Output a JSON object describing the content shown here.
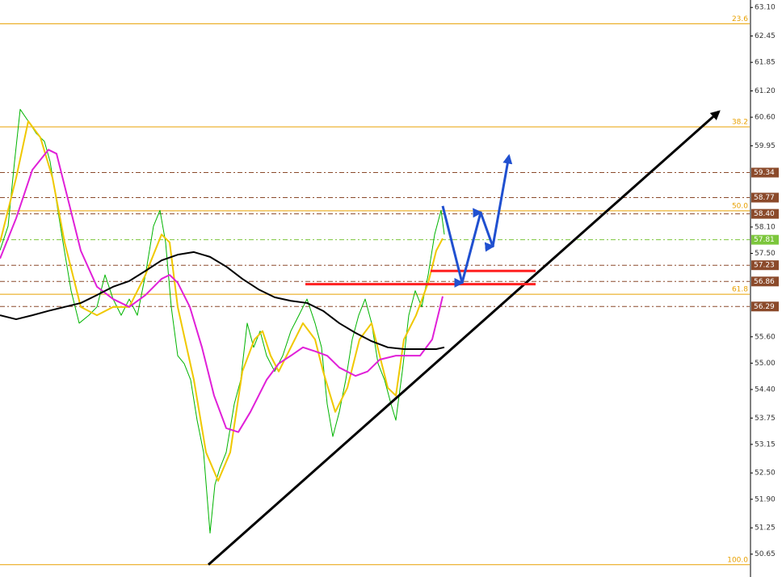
{
  "chart_data": {
    "type": "line",
    "ylim": [
      50.13,
      63.27
    ],
    "xlim": [
      0,
      928
    ],
    "yticks": [
      {
        "value": 63.1,
        "label": "63.10"
      },
      62.45,
      61.85,
      {
        "value": 61.2,
        "label": "61.20"
      },
      {
        "value": 60.6,
        "label": "60.60"
      },
      59.95,
      {
        "value": 58.1,
        "label": "58.10"
      },
      {
        "value": 57.5,
        "label": "57.50"
      },
      {
        "value": 55.6,
        "label": "55.60"
      },
      {
        "value": 55.0,
        "label": "55.00"
      },
      {
        "value": 54.4,
        "label": "54.40"
      },
      53.75,
      53.15,
      {
        "value": 52.5,
        "label": "52.50"
      },
      {
        "value": 51.9,
        "label": "51.90"
      },
      51.25,
      50.65
    ],
    "series": [
      {
        "name": "price",
        "color": "#00b400",
        "width": 1,
        "x": [
          0,
          10,
          18,
          25,
          35,
          45,
          55,
          62,
          70,
          78,
          88,
          98,
          110,
          120,
          130,
          140,
          150,
          160,
          170,
          180,
          190,
          198,
          205,
          212,
          220,
          228,
          236,
          244,
          252,
          260,
          266,
          272,
          280,
          290,
          298,
          306,
          314,
          322,
          330,
          340,
          350,
          360,
          370,
          380,
          390,
          398,
          405,
          412,
          420,
          428,
          436,
          444,
          452,
          460,
          468,
          476,
          484,
          490,
          498,
          506,
          514,
          522,
          530,
          538,
          546,
          550
        ],
        "values": [
          57.57,
          58.12,
          59.59,
          60.78,
          60.51,
          60.23,
          60.05,
          59.59,
          58.67,
          57.75,
          56.65,
          55.91,
          56.09,
          56.28,
          57.01,
          56.46,
          56.09,
          56.46,
          56.09,
          57.01,
          58.12,
          58.48,
          57.75,
          56.28,
          55.17,
          54.99,
          54.62,
          53.7,
          52.97,
          51.13,
          52.23,
          52.6,
          52.97,
          54.07,
          54.62,
          55.91,
          55.36,
          55.73,
          55.17,
          54.81,
          55.17,
          55.73,
          56.09,
          56.46,
          55.91,
          55.36,
          54.07,
          53.33,
          53.89,
          54.62,
          55.54,
          56.09,
          56.46,
          55.91,
          54.99,
          54.62,
          54.07,
          53.7,
          54.81,
          56.09,
          56.65,
          56.28,
          57.01,
          57.93,
          58.48,
          57.93
        ]
      },
      {
        "name": "ma-fast",
        "color": "#f0c800",
        "width": 2,
        "x": [
          0,
          20,
          35,
          50,
          65,
          80,
          100,
          120,
          140,
          160,
          180,
          200,
          210,
          220,
          240,
          255,
          270,
          285,
          300,
          315,
          325,
          335,
          345,
          360,
          375,
          390,
          400,
          415,
          430,
          445,
          460,
          470,
          480,
          490,
          500,
          515,
          530,
          540,
          548
        ],
        "values": [
          57.75,
          59.22,
          60.51,
          60.14,
          59.22,
          57.75,
          56.28,
          56.09,
          56.28,
          56.28,
          57.01,
          57.93,
          57.75,
          56.28,
          54.62,
          52.97,
          52.32,
          52.97,
          54.81,
          55.54,
          55.73,
          55.17,
          54.81,
          55.36,
          55.91,
          55.54,
          54.81,
          53.89,
          54.44,
          55.54,
          55.91,
          55.17,
          54.44,
          54.26,
          55.54,
          56.09,
          56.83,
          57.56,
          57.84
        ]
      },
      {
        "name": "ma-mid",
        "color": "#e020d8",
        "width": 2,
        "x": [
          0,
          20,
          40,
          60,
          70,
          85,
          100,
          120,
          140,
          160,
          180,
          200,
          210,
          220,
          235,
          250,
          265,
          280,
          295,
          310,
          330,
          345,
          360,
          375,
          390,
          405,
          420,
          440,
          455,
          470,
          490,
          505,
          520,
          535,
          548
        ],
        "values": [
          57.38,
          58.3,
          59.4,
          59.86,
          59.77,
          58.67,
          57.56,
          56.74,
          56.46,
          56.28,
          56.55,
          56.92,
          57.01,
          56.83,
          56.28,
          55.36,
          54.26,
          53.52,
          53.43,
          53.89,
          54.62,
          54.99,
          55.17,
          55.36,
          55.27,
          55.17,
          54.9,
          54.71,
          54.81,
          55.08,
          55.17,
          55.17,
          55.17,
          55.54,
          56.52
        ]
      },
      {
        "name": "ma-slow",
        "color": "#000000",
        "width": 2,
        "x": [
          0,
          20,
          40,
          60,
          80,
          100,
          120,
          140,
          160,
          180,
          200,
          220,
          240,
          260,
          280,
          300,
          320,
          340,
          360,
          380,
          400,
          420,
          440,
          460,
          480,
          500,
          520,
          540,
          550
        ],
        "values": [
          56.09,
          56.0,
          56.09,
          56.19,
          56.28,
          56.37,
          56.55,
          56.74,
          56.87,
          57.1,
          57.34,
          57.47,
          57.53,
          57.42,
          57.2,
          56.92,
          56.68,
          56.5,
          56.42,
          56.37,
          56.19,
          55.91,
          55.69,
          55.5,
          55.36,
          55.32,
          55.32,
          55.32,
          55.36
        ]
      }
    ],
    "fib_levels": [
      {
        "label": "23.6",
        "value": 62.73
      },
      {
        "label": "38.2",
        "value": 60.38
      },
      {
        "label": "50.0",
        "value": 58.47
      },
      {
        "label": "61.8",
        "value": 56.57
      },
      {
        "label": "100.0",
        "value": 50.41
      }
    ],
    "fib_color": "#e8a000",
    "levels": [
      {
        "value": 59.34,
        "label": "59.34",
        "color": "#8b4a2b"
      },
      {
        "value": 58.77,
        "label": "58.77",
        "color": "#8b4a2b"
      },
      {
        "value": 58.4,
        "label": "58.40",
        "color": "#8b4a2b"
      },
      {
        "value": 57.81,
        "label": "57.81",
        "color": "#7cc63c"
      },
      {
        "value": 57.23,
        "label": "57.23",
        "color": "#8b4a2b"
      },
      {
        "value": 56.86,
        "label": "56.86",
        "color": "#8b4a2b"
      },
      {
        "value": 56.29,
        "label": "56.29",
        "color": "#8b4a2b"
      }
    ],
    "annotations": [
      {
        "name": "trendline",
        "color": "#000000",
        "width": 3,
        "arrow": true,
        "x": [
          258,
          890
        ],
        "values": [
          50.41,
          60.73
        ]
      },
      {
        "name": "resistance-1",
        "color": "#ff2020",
        "width": 3,
        "arrow": false,
        "x": [
          533,
          663
        ],
        "values": [
          57.1,
          57.1
        ]
      },
      {
        "name": "resistance-2",
        "color": "#ff2020",
        "width": 3,
        "arrow": false,
        "x": [
          378,
          663
        ],
        "values": [
          56.8,
          56.8
        ]
      },
      {
        "name": "projection",
        "color": "#2050d0",
        "width": 3,
        "arrow": true,
        "x": [
          548,
          572,
          595,
          610,
          630
        ],
        "values": [
          58.58,
          56.83,
          58.43,
          57.66,
          59.72
        ]
      }
    ]
  }
}
